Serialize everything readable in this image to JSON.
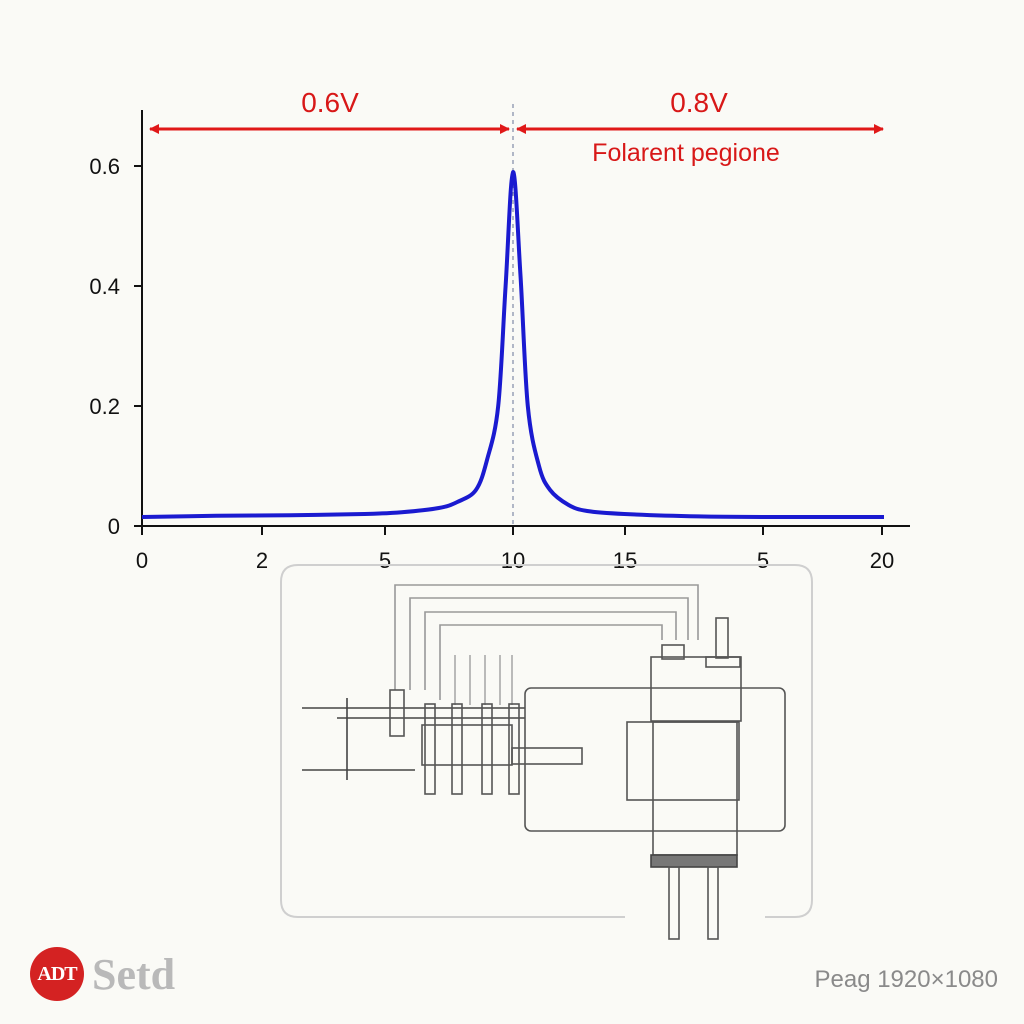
{
  "chart_data": {
    "type": "line",
    "title": "",
    "xlabel": "",
    "ylabel": "",
    "xlim": [
      0,
      20
    ],
    "ylim": [
      0,
      0.6
    ],
    "x_tick_labels": [
      "0",
      "2",
      "5",
      "10",
      "15",
      "5",
      "20"
    ],
    "y_ticks": [
      0,
      0.2,
      0.4,
      0.6
    ],
    "y_tick_labels": [
      "0",
      "0.2",
      "0.4",
      "0.6"
    ],
    "grid": false,
    "series": [
      {
        "color": "#1a1ad0",
        "x": [
          0,
          2,
          4,
          6,
          7,
          8,
          8.5,
          9,
          9.3,
          9.6,
          9.8,
          10,
          10.2,
          10.4,
          10.7,
          11,
          11.5,
          12,
          13,
          15,
          17,
          20
        ],
        "y": [
          0.015,
          0.017,
          0.018,
          0.02,
          0.023,
          0.03,
          0.04,
          0.06,
          0.11,
          0.2,
          0.4,
          0.59,
          0.42,
          0.2,
          0.1,
          0.06,
          0.035,
          0.025,
          0.02,
          0.016,
          0.015,
          0.015
        ]
      }
    ],
    "annotations": [
      {
        "text": "0.6V",
        "color": "#e01818"
      },
      {
        "text": "0.8V",
        "color": "#e01818"
      },
      {
        "text": "Folarent pegione",
        "color": "#e01818"
      }
    ],
    "marker_line_x": 10
  },
  "footer": {
    "brand_mark": "ADT",
    "brand_name": "Setd",
    "resolution_label": "Peag 1920×1080"
  }
}
